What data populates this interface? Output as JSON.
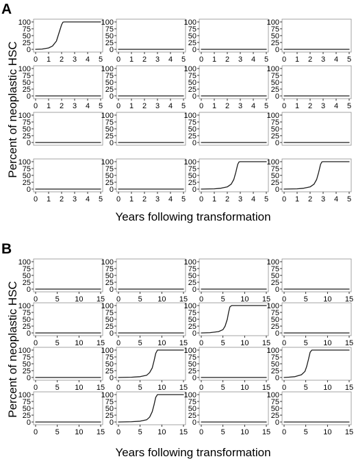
{
  "figure": {
    "y_axis_title": "Percent of neoplastic HSC",
    "x_axis_title": "Years following transformation"
  },
  "chart_data": [
    {
      "type": "line",
      "panel_label": "A",
      "layout": "4x4 small multiples",
      "ylabel": "Percent of neoplastic HSC",
      "xlabel": "Years following transformation",
      "xlim": [
        0,
        5
      ],
      "ylim": [
        0,
        100
      ],
      "xticks": [
        0,
        1,
        2,
        3,
        4,
        5
      ],
      "yticks": [
        0,
        25,
        50,
        75,
        100
      ],
      "x_tick_rows": [
        0,
        1,
        3
      ],
      "grid": false,
      "subplots": [
        {
          "transformed": true,
          "x": [
            0,
            0.5,
            1.0,
            1.3,
            1.6,
            1.8,
            2.0,
            2.1,
            2.2,
            2.4,
            5
          ],
          "y": [
            0,
            1,
            5,
            12,
            30,
            60,
            90,
            99,
            100,
            100,
            100
          ]
        },
        {
          "transformed": false,
          "x": [
            0,
            5
          ],
          "y": [
            0,
            0
          ]
        },
        {
          "transformed": false,
          "x": [
            0,
            5
          ],
          "y": [
            0,
            0
          ]
        },
        {
          "transformed": false,
          "x": [
            0,
            5
          ],
          "y": [
            0,
            0
          ]
        },
        {
          "transformed": false,
          "x": [
            0,
            5
          ],
          "y": [
            0,
            0
          ]
        },
        {
          "transformed": false,
          "x": [
            0,
            5
          ],
          "y": [
            0,
            0
          ]
        },
        {
          "transformed": false,
          "x": [
            0,
            5
          ],
          "y": [
            0,
            0
          ]
        },
        {
          "transformed": false,
          "x": [
            0,
            5
          ],
          "y": [
            0,
            0
          ]
        },
        {
          "transformed": false,
          "x": [
            0,
            5
          ],
          "y": [
            0,
            0
          ]
        },
        {
          "transformed": false,
          "x": [
            0,
            5
          ],
          "y": [
            0,
            0
          ]
        },
        {
          "transformed": false,
          "x": [
            0,
            5
          ],
          "y": [
            0,
            0
          ]
        },
        {
          "transformed": false,
          "x": [
            0,
            5
          ],
          "y": [
            0,
            0
          ]
        },
        {
          "transformed": false,
          "x": [
            0,
            5
          ],
          "y": [
            0,
            0
          ]
        },
        {
          "transformed": false,
          "x": [
            0,
            5
          ],
          "y": [
            0,
            0
          ]
        },
        {
          "transformed": true,
          "x": [
            0,
            1.0,
            1.5,
            2.0,
            2.3,
            2.5,
            2.65,
            2.8,
            2.9,
            3.0,
            5
          ],
          "y": [
            0,
            1,
            3,
            8,
            18,
            35,
            60,
            90,
            99,
            100,
            100
          ]
        },
        {
          "transformed": true,
          "x": [
            0,
            1.0,
            1.5,
            2.0,
            2.3,
            2.5,
            2.65,
            2.8,
            2.9,
            3.0,
            5
          ],
          "y": [
            0,
            1,
            3,
            8,
            18,
            35,
            60,
            90,
            99,
            100,
            100
          ]
        }
      ]
    },
    {
      "type": "line",
      "panel_label": "B",
      "layout": "4x4 small multiples",
      "ylabel": "Percent of neoplastic HSC",
      "xlabel": "Years following transformation",
      "xlim": [
        0,
        15
      ],
      "ylim": [
        0,
        100
      ],
      "xticks": [
        0,
        5,
        10,
        15
      ],
      "yticks": [
        0,
        25,
        50,
        75,
        100
      ],
      "x_tick_rows": [
        0,
        1,
        2,
        3
      ],
      "grid": false,
      "subplots": [
        {
          "transformed": false,
          "x": [
            0,
            15
          ],
          "y": [
            0,
            0
          ]
        },
        {
          "transformed": false,
          "x": [
            0,
            15
          ],
          "y": [
            0,
            0
          ]
        },
        {
          "transformed": false,
          "x": [
            0,
            15
          ],
          "y": [
            0,
            0
          ]
        },
        {
          "transformed": false,
          "x": [
            0,
            15
          ],
          "y": [
            0,
            0
          ]
        },
        {
          "transformed": false,
          "x": [
            0,
            15
          ],
          "y": [
            0,
            0
          ]
        },
        {
          "transformed": false,
          "x": [
            0,
            15
          ],
          "y": [
            0,
            0
          ]
        },
        {
          "transformed": true,
          "x": [
            0,
            2,
            4,
            5,
            5.5,
            6.0,
            6.3,
            6.6,
            7.0,
            7.5,
            15
          ],
          "y": [
            0,
            1,
            5,
            12,
            25,
            50,
            75,
            95,
            100,
            100,
            100
          ]
        },
        {
          "transformed": false,
          "x": [
            0,
            15
          ],
          "y": [
            0,
            0
          ]
        },
        {
          "transformed": false,
          "x": [
            0,
            15
          ],
          "y": [
            0,
            0
          ]
        },
        {
          "transformed": true,
          "x": [
            0,
            3,
            5,
            6.5,
            7.2,
            7.8,
            8.2,
            8.6,
            9.0,
            9.5,
            15
          ],
          "y": [
            0,
            1,
            3,
            8,
            18,
            35,
            60,
            88,
            100,
            100,
            100
          ]
        },
        {
          "transformed": false,
          "x": [
            0,
            15
          ],
          "y": [
            0,
            0
          ]
        },
        {
          "transformed": true,
          "x": [
            0,
            1,
            2.5,
            4.0,
            4.8,
            5.2,
            5.6,
            6.0,
            6.4,
            7.0,
            15
          ],
          "y": [
            0,
            1,
            3,
            10,
            22,
            40,
            65,
            92,
            100,
            100,
            100
          ]
        },
        {
          "transformed": false,
          "x": [
            0,
            15
          ],
          "y": [
            0,
            0
          ]
        },
        {
          "transformed": true,
          "x": [
            0,
            3,
            5,
            6.5,
            7.2,
            7.8,
            8.2,
            8.6,
            9.0,
            9.5,
            15
          ],
          "y": [
            0,
            1,
            3,
            8,
            18,
            38,
            62,
            90,
            100,
            100,
            100
          ]
        },
        {
          "transformed": false,
          "x": [
            0,
            15
          ],
          "y": [
            0,
            0
          ]
        },
        {
          "transformed": false,
          "x": [
            0,
            15
          ],
          "y": [
            0,
            0
          ]
        }
      ]
    }
  ]
}
